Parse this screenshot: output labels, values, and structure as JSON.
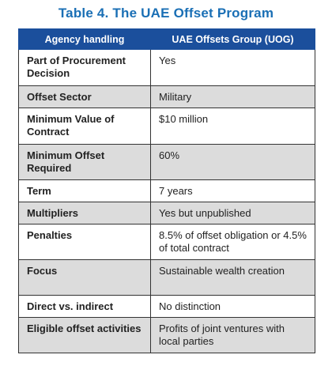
{
  "title": "Table 4. The UAE Offset Program",
  "table": {
    "headers": [
      "Agency handling",
      "UAE Offsets Group (UOG)"
    ],
    "rows": [
      {
        "label": "Part of Procurement Decision",
        "value": "Yes"
      },
      {
        "label": "Offset Sector",
        "value": "Military"
      },
      {
        "label": "Minimum Value of Contract",
        "value": "$10 million"
      },
      {
        "label": "Minimum Offset Required",
        "value": "60%"
      },
      {
        "label": "Term",
        "value": "7 years"
      },
      {
        "label": "Multipliers",
        "value": "Yes but unpublished"
      },
      {
        "label": "Penalties",
        "value": "8.5% of offset obligation or 4.5% of total contract"
      },
      {
        "label": "Focus",
        "value": "Sustainable wealth creation"
      },
      {
        "label": "Direct vs. indirect",
        "value": "No distinction"
      },
      {
        "label": "Eligible offset activities",
        "value": "Profits of joint ventures with local parties"
      }
    ]
  },
  "colors": {
    "title": "#1a6fb5",
    "header_bg": "#1b4f9c",
    "shaded_row": "#dcdcdc"
  }
}
